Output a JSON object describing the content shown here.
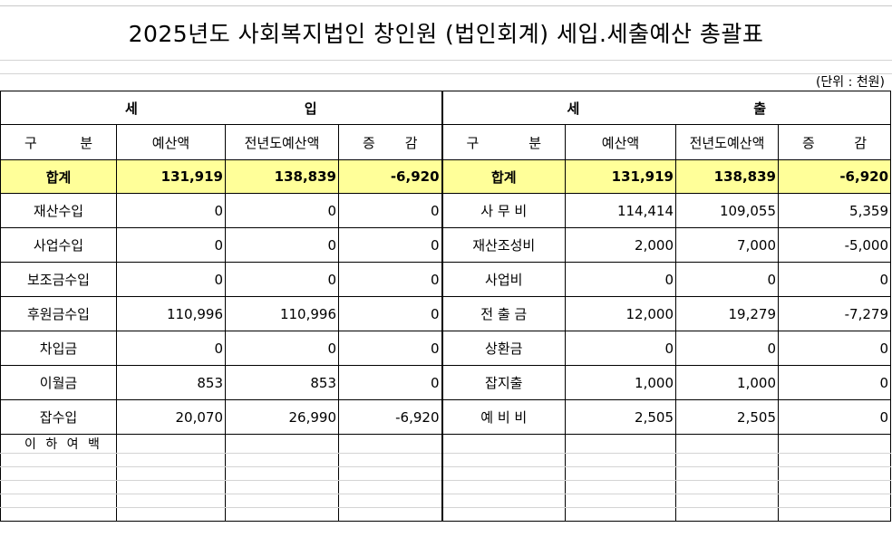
{
  "title": "2025년도 사회복지법인 창인원 (법인회계) 세입.세출예산 총괄표",
  "unit_label": "(단위 : 천원)",
  "revenue_header": [
    "세",
    "입"
  ],
  "expense_header": [
    "세",
    "출"
  ],
  "columns": {
    "category": [
      "구",
      "분"
    ],
    "budget": "예산액",
    "prev_budget": "전년도예산액",
    "change": [
      "증",
      "감"
    ]
  },
  "total": {
    "label": "합계",
    "revenue": {
      "budget": "131,919",
      "prev": "138,839",
      "change": "-6,920"
    },
    "expense": {
      "budget": "131,919",
      "prev": "138,839",
      "change": "-6,920"
    }
  },
  "rows": [
    {
      "rev_label": "재산수입",
      "rev_budget": "0",
      "rev_prev": "0",
      "rev_change": "0",
      "exp_label": "사 무 비",
      "exp_budget": "114,414",
      "exp_prev": "109,055",
      "exp_change": "5,359"
    },
    {
      "rev_label": "사업수입",
      "rev_budget": "0",
      "rev_prev": "0",
      "rev_change": "0",
      "exp_label": "재산조성비",
      "exp_budget": "2,000",
      "exp_prev": "7,000",
      "exp_change": "-5,000"
    },
    {
      "rev_label": "보조금수입",
      "rev_budget": "0",
      "rev_prev": "0",
      "rev_change": "0",
      "exp_label": "사업비",
      "exp_budget": "0",
      "exp_prev": "0",
      "exp_change": "0"
    },
    {
      "rev_label": "후원금수입",
      "rev_budget": "110,996",
      "rev_prev": "110,996",
      "rev_change": "0",
      "exp_label": "전 출 금",
      "exp_budget": "12,000",
      "exp_prev": "19,279",
      "exp_change": "-7,279"
    },
    {
      "rev_label": "차입금",
      "rev_budget": "0",
      "rev_prev": "0",
      "rev_change": "0",
      "exp_label": "상환금",
      "exp_budget": "0",
      "exp_prev": "0",
      "exp_change": "0"
    },
    {
      "rev_label": "이월금",
      "rev_budget": "853",
      "rev_prev": "853",
      "rev_change": "0",
      "exp_label": "잡지출",
      "exp_budget": "1,000",
      "exp_prev": "1,000",
      "exp_change": "0"
    },
    {
      "rev_label": "잡수입",
      "rev_budget": "20,070",
      "rev_prev": "26,990",
      "rev_change": "-6,920",
      "exp_label": "예 비 비",
      "exp_budget": "2,505",
      "exp_prev": "2,505",
      "exp_change": "0"
    }
  ],
  "footer_note": "이 하 여 백",
  "colors": {
    "total_row_bg": "#ffff99",
    "gridline": "#d4d4d4"
  }
}
